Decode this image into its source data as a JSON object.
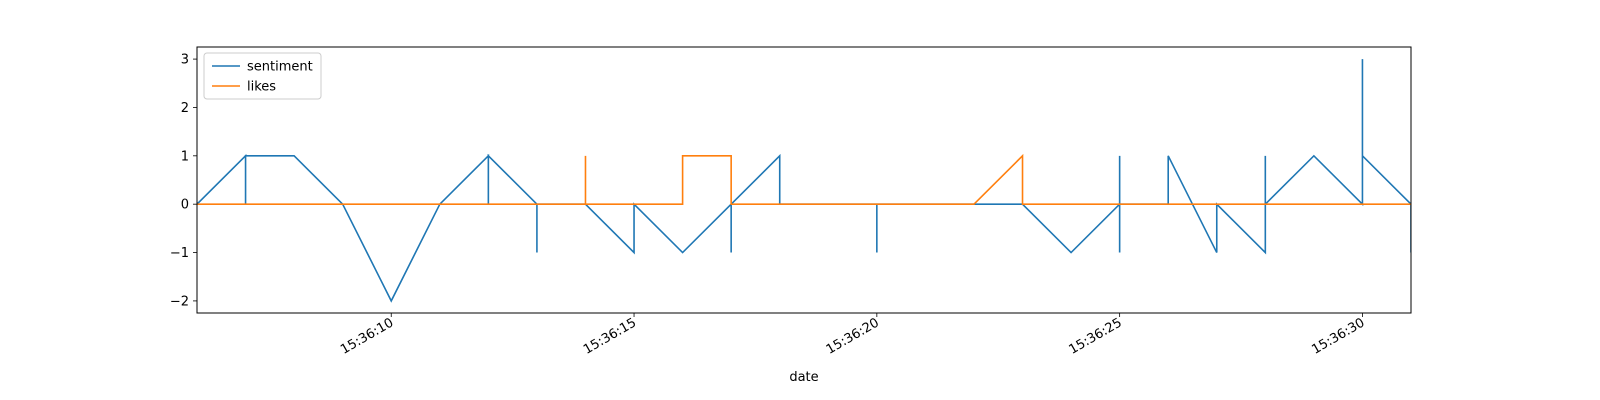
{
  "chart_data": {
    "type": "line",
    "title": "",
    "xlabel": "date",
    "ylabel": "",
    "x_ticks": [
      "15:36:10",
      "15:36:15",
      "15:36:20",
      "15:36:25",
      "15:36:30"
    ],
    "y_ticks": [
      3,
      2,
      1,
      0,
      -1,
      -2
    ],
    "xlim": [
      "15:36:06",
      "15:36:31"
    ],
    "ylim": [
      -2.25,
      3.25
    ],
    "grid": false,
    "legend_position": "upper-left",
    "series": [
      {
        "name": "sentiment",
        "color": "#1f77b4",
        "x": [
          "15:36:06",
          "15:36:07",
          "15:36:07",
          "15:36:07",
          "15:36:07",
          "15:36:08",
          "15:36:09",
          "15:36:10",
          "15:36:11",
          "15:36:12",
          "15:36:12",
          "15:36:12",
          "15:36:12",
          "15:36:13",
          "15:36:13",
          "15:36:13",
          "15:36:13",
          "15:36:14",
          "15:36:15",
          "15:36:15",
          "15:36:15",
          "15:36:16",
          "15:36:17",
          "15:36:17",
          "15:36:17",
          "15:36:17",
          "15:36:18",
          "15:36:18",
          "15:36:18",
          "15:36:19",
          "15:36:20",
          "15:36:20",
          "15:36:20",
          "15:36:21",
          "15:36:22",
          "15:36:23",
          "15:36:24",
          "15:36:25",
          "15:36:25",
          "15:36:25",
          "15:36:25",
          "15:36:25",
          "15:36:26",
          "15:36:26",
          "15:36:26",
          "15:36:27",
          "15:36:27",
          "15:36:28",
          "15:36:28",
          "15:36:28",
          "15:36:29",
          "15:36:30",
          "15:36:30",
          "15:36:30",
          "15:36:30",
          "15:36:31",
          "15:36:31"
        ],
        "y": [
          0,
          1,
          0,
          1,
          1,
          1,
          0,
          -2,
          0,
          1,
          0,
          1,
          1,
          0,
          -1,
          0,
          0,
          0,
          -1,
          0,
          0,
          -1,
          0,
          -1,
          0,
          0,
          1,
          0,
          0,
          0,
          0,
          -1,
          0,
          0,
          0,
          0,
          -1,
          0,
          0,
          1,
          -1,
          0,
          0,
          1,
          1,
          -1,
          0,
          -1,
          1,
          0,
          1,
          0,
          3,
          1,
          1,
          0,
          -1
        ]
      },
      {
        "name": "likes",
        "color": "#ff7f0e",
        "x": [
          "15:36:06",
          "15:36:14",
          "15:36:14",
          "15:36:14",
          "15:36:16",
          "15:36:16",
          "15:36:17",
          "15:36:17",
          "15:36:22",
          "15:36:23",
          "15:36:23",
          "15:36:31"
        ],
        "y": [
          0,
          0,
          1,
          0,
          0,
          1,
          1,
          0,
          0,
          1,
          0,
          0
        ]
      }
    ]
  }
}
